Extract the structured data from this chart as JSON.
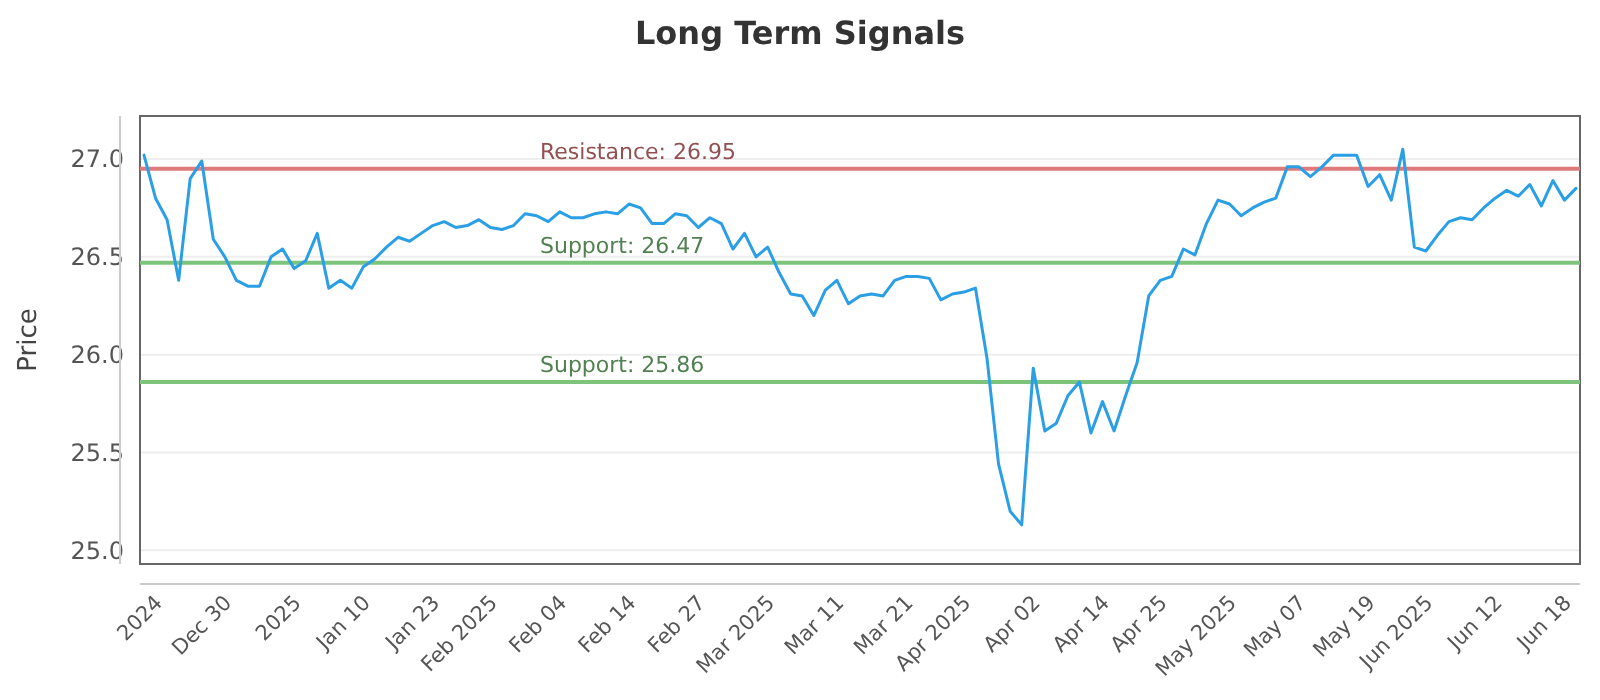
{
  "chart_data": {
    "type": "line",
    "title": "Long Term Signals",
    "ylabel": "Price",
    "categories": [
      null,
      "2024",
      null,
      null,
      null,
      null,
      null,
      "Dec 30",
      null,
      null,
      null,
      null,
      null,
      "2025",
      null,
      null,
      null,
      null,
      null,
      "Jan 10",
      null,
      null,
      null,
      null,
      null,
      "Jan 23",
      null,
      null,
      null,
      null,
      "Feb 2025",
      null,
      null,
      null,
      null,
      null,
      "Feb 04",
      null,
      null,
      null,
      null,
      null,
      "Feb 14",
      null,
      null,
      null,
      null,
      null,
      "Feb 27",
      null,
      null,
      null,
      null,
      null,
      "Mar 2025",
      null,
      null,
      null,
      null,
      null,
      "Mar 11",
      null,
      null,
      null,
      null,
      null,
      "Mar 21",
      null,
      null,
      null,
      null,
      "Apr 2025",
      null,
      null,
      null,
      null,
      null,
      "Apr 02",
      null,
      null,
      null,
      null,
      null,
      "Apr 14",
      null,
      null,
      null,
      null,
      "Apr 25",
      null,
      null,
      null,
      null,
      null,
      "May 2025",
      null,
      null,
      null,
      null,
      null,
      "May 07",
      null,
      null,
      null,
      null,
      null,
      "May 19",
      null,
      null,
      null,
      null,
      "Jun 2025",
      null,
      null,
      null,
      null,
      null,
      "Jun 12",
      null,
      null,
      null,
      null,
      null,
      "Jun 18",
      null
    ],
    "series": [
      {
        "color": "#2b9fe6",
        "values": [
          27.02,
          26.8,
          26.69,
          26.38,
          26.9,
          26.99,
          26.59,
          26.5,
          26.38,
          26.35,
          26.35,
          26.5,
          26.54,
          26.44,
          26.48,
          26.62,
          26.34,
          26.38,
          26.34,
          26.45,
          26.49,
          26.55,
          26.6,
          26.58,
          26.62,
          26.66,
          26.68,
          26.65,
          26.66,
          26.69,
          26.65,
          26.64,
          26.66,
          26.72,
          26.71,
          26.68,
          26.73,
          26.7,
          26.7,
          26.72,
          26.73,
          26.72,
          26.77,
          26.75,
          26.67,
          26.67,
          26.72,
          26.71,
          26.65,
          26.7,
          26.67,
          26.54,
          26.62,
          26.5,
          26.55,
          26.42,
          26.31,
          26.3,
          26.2,
          26.33,
          26.38,
          26.26,
          26.3,
          26.31,
          26.3,
          26.38,
          26.4,
          26.4,
          26.39,
          26.28,
          26.31,
          26.32,
          26.34,
          25.98,
          25.44,
          25.2,
          25.13,
          25.93,
          25.61,
          25.65,
          25.79,
          25.86,
          25.6,
          25.76,
          25.61,
          25.79,
          25.96,
          26.3,
          26.38,
          26.4,
          26.54,
          26.51,
          26.67,
          26.79,
          26.77,
          26.71,
          26.75,
          26.78,
          26.8,
          26.96,
          26.96,
          26.91,
          26.96,
          27.02,
          27.02,
          27.02,
          26.86,
          26.92,
          26.79,
          27.05,
          26.55,
          26.53,
          26.61,
          26.68,
          26.7,
          26.69,
          26.75,
          26.8,
          26.84,
          26.81,
          26.87,
          26.76,
          26.89,
          26.79,
          26.85
        ]
      }
    ],
    "ylim": [
      24.93,
      27.22
    ],
    "yticks": [
      {
        "value": 25,
        "label": "25.0"
      },
      {
        "value": 25.5,
        "label": "25.5"
      },
      {
        "value": 26,
        "label": "26.0"
      },
      {
        "value": 26.5,
        "label": "26.5"
      },
      {
        "value": 27,
        "label": "27.0"
      }
    ],
    "grid": "y",
    "ref_lines": [
      {
        "axis": "y",
        "value": 26.95,
        "label": "Resistance: 26.95",
        "color": "#e07a7a"
      },
      {
        "axis": "y",
        "value": 26.47,
        "label": "Support: 26.47",
        "color": "#7cc47c"
      },
      {
        "axis": "y",
        "value": 25.86,
        "label": "Support: 25.86",
        "color": "#7cc47c"
      }
    ]
  }
}
